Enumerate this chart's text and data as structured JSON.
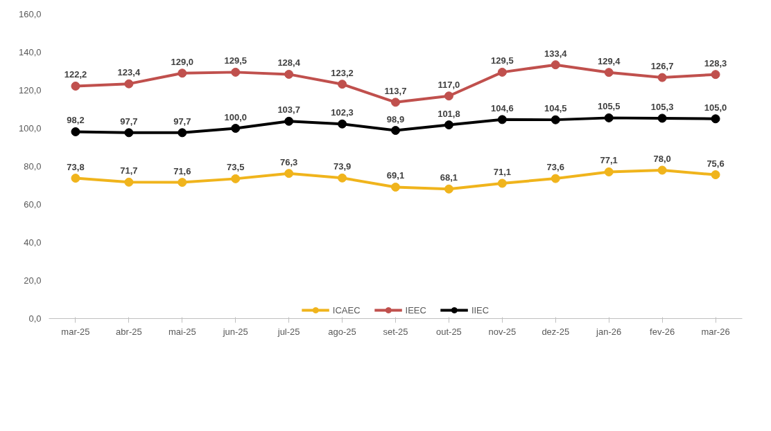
{
  "chart_data": {
    "type": "line",
    "categories": [
      "mar-25",
      "abr-25",
      "mai-25",
      "jun-25",
      "jul-25",
      "ago-25",
      "set-25",
      "out-25",
      "nov-25",
      "dez-25",
      "jan-26",
      "fev-26",
      "mar-26"
    ],
    "series": [
      {
        "name": "ICAEC",
        "color": "#f0b41c",
        "values": [
          73.8,
          71.7,
          71.6,
          73.5,
          76.3,
          73.9,
          69.1,
          68.1,
          71.1,
          73.6,
          77.1,
          78.0,
          75.6
        ],
        "value_labels": [
          "73,8",
          "71,7",
          "71,6",
          "73,5",
          "76,3",
          "73,9",
          "69,1",
          "68,1",
          "71,1",
          "73,6",
          "77,1",
          "78,0",
          "75,6"
        ]
      },
      {
        "name": "IEEC",
        "color": "#c0504d",
        "values": [
          122.2,
          123.4,
          129.0,
          129.5,
          128.4,
          123.2,
          113.7,
          117.0,
          129.5,
          133.4,
          129.4,
          126.7,
          128.3
        ],
        "value_labels": [
          "122,2",
          "123,4",
          "129,0",
          "129,5",
          "128,4",
          "123,2",
          "113,7",
          "117,0",
          "129,5",
          "133,4",
          "129,4",
          "126,7",
          "128,3"
        ]
      },
      {
        "name": "IIEC",
        "color": "#000000",
        "values": [
          98.2,
          97.7,
          97.7,
          100.0,
          103.7,
          102.3,
          98.9,
          101.8,
          104.6,
          104.5,
          105.5,
          105.3,
          105.0
        ],
        "value_labels": [
          "98,2",
          "97,7",
          "97,7",
          "100,0",
          "103,7",
          "102,3",
          "98,9",
          "101,8",
          "104,6",
          "104,5",
          "105,5",
          "105,3",
          "105,0"
        ]
      }
    ],
    "ylim": [
      0,
      160
    ],
    "yticks": [
      {
        "value": 0,
        "label": "0,0"
      },
      {
        "value": 20,
        "label": "20,0"
      },
      {
        "value": 40,
        "label": "40,0"
      },
      {
        "value": 60,
        "label": "60,0"
      },
      {
        "value": 80,
        "label": "80,0"
      },
      {
        "value": 100,
        "label": "100,0"
      },
      {
        "value": 120,
        "label": "120,0"
      },
      {
        "value": 140,
        "label": "140,0"
      },
      {
        "value": 160,
        "label": "160,0"
      }
    ],
    "grid": false,
    "legend": "bottom",
    "marker": "circle",
    "line_style": "solid"
  }
}
